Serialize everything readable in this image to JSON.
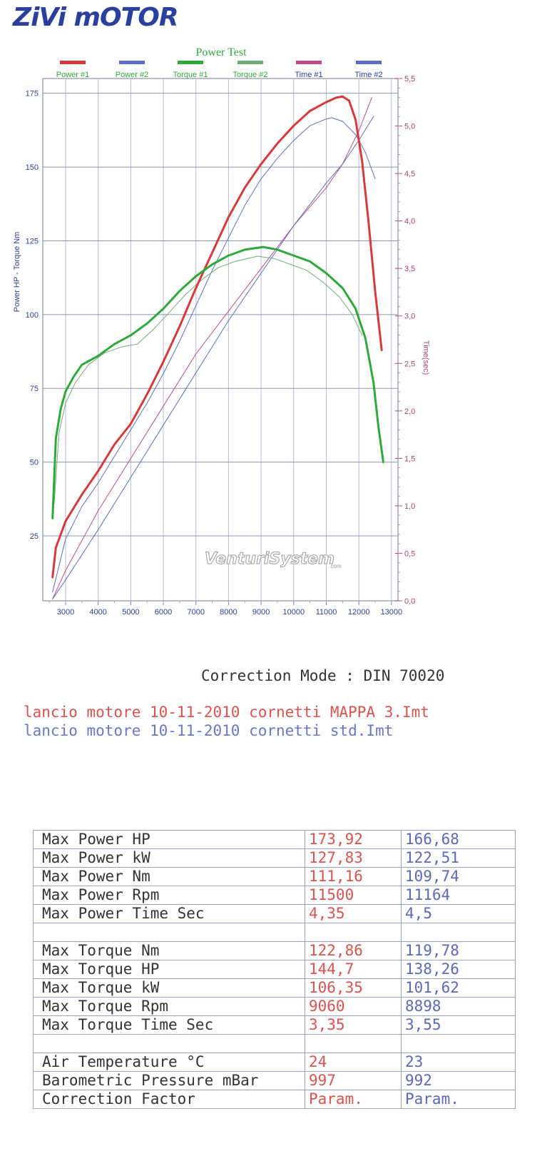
{
  "logo": {
    "text": "ZiVi mOTOR",
    "color": "#2b3f9e"
  },
  "chart_data": {
    "type": "line",
    "title": "Power Test",
    "ylabel": "Power HP - Torque Nm",
    "y2label": "Time(sec)",
    "xlim": [
      2300,
      13200
    ],
    "ylim": [
      3,
      180
    ],
    "y2lim": [
      0,
      5.5
    ],
    "x_ticks": [
      3000,
      4000,
      5000,
      6000,
      7000,
      8000,
      9000,
      10000,
      11000,
      12000,
      13000
    ],
    "y_ticks": [
      25,
      50,
      75,
      100,
      125,
      150,
      175
    ],
    "y2_ticks": [
      "0,0",
      "0,5",
      "1,0",
      "1,5",
      "2,0",
      "2,5",
      "3,0",
      "3,5",
      "4,0",
      "4,5",
      "5,0",
      "5,5"
    ],
    "watermark": "VenturiSystem",
    "watermark_sub": ".com",
    "grid": true,
    "legend_position": "top",
    "series": [
      {
        "name": "Power #1",
        "axis": "left",
        "color": "#d63a3a",
        "width": 3,
        "x": [
          2600,
          2700,
          3000,
          3500,
          4000,
          4500,
          5000,
          5500,
          6000,
          6500,
          7000,
          7500,
          8000,
          8500,
          9000,
          9500,
          10000,
          10500,
          11000,
          11300,
          11500,
          11700,
          11900,
          12100,
          12300,
          12500,
          12700
        ],
        "y": [
          11,
          21,
          30,
          39,
          47,
          56,
          63,
          73,
          84,
          96,
          109,
          121,
          133,
          143,
          151,
          158,
          164,
          169,
          172,
          173.5,
          173.9,
          172.5,
          166,
          152,
          131,
          108,
          88
        ]
      },
      {
        "name": "Power #2",
        "axis": "left",
        "color": "#5a6fc4",
        "width": 1,
        "x": [
          2600,
          3000,
          3500,
          4000,
          4500,
          5000,
          5500,
          6000,
          6500,
          7000,
          7500,
          8000,
          8500,
          9000,
          9500,
          10000,
          10500,
          11000,
          11164,
          11500,
          11900,
          12200,
          12500
        ],
        "y": [
          6,
          24,
          35,
          43,
          52,
          61,
          70,
          80,
          91,
          103,
          115,
          126,
          137,
          146,
          153,
          159,
          164,
          166.3,
          166.7,
          165.5,
          161,
          155,
          146
        ]
      },
      {
        "name": "Torque #1",
        "axis": "left",
        "color": "#2fa83a",
        "width": 3,
        "x": [
          2600,
          2700,
          2850,
          3000,
          3250,
          3500,
          4000,
          4500,
          5000,
          5500,
          6000,
          6500,
          7000,
          7500,
          8000,
          8500,
          9060,
          9500,
          10000,
          10500,
          11000,
          11500,
          11900,
          12200,
          12450,
          12600,
          12750
        ],
        "y": [
          31,
          58,
          68,
          74,
          79,
          83,
          86,
          90,
          93,
          97,
          102,
          108,
          113,
          117,
          120,
          122,
          122.9,
          122,
          120,
          118,
          114,
          109,
          102,
          92,
          77,
          62,
          50
        ]
      },
      {
        "name": "Torque #2",
        "axis": "left",
        "color": "#6fae72",
        "width": 1,
        "x": [
          2650,
          2800,
          3000,
          3300,
          3700,
          4200,
          4700,
          5200,
          5700,
          6200,
          6700,
          7200,
          7700,
          8200,
          8898,
          9400,
          9900,
          10400,
          10900,
          11400,
          11800,
          12100
        ],
        "y": [
          36,
          60,
          70,
          77,
          83,
          87,
          89,
          90,
          95,
          101,
          107,
          112,
          116,
          118,
          119.8,
          119,
          117,
          115,
          111,
          106,
          100,
          93
        ]
      },
      {
        "name": "Time #1",
        "axis": "right",
        "color": "#c04a8a",
        "width": 1,
        "x": [
          2600,
          3000,
          4000,
          5000,
          6000,
          7000,
          8000,
          9000,
          10000,
          11000,
          11500,
          12000,
          12400
        ],
        "y": [
          0.02,
          0.32,
          0.95,
          1.5,
          2.05,
          2.6,
          3.05,
          3.5,
          3.95,
          4.35,
          4.6,
          4.95,
          5.3
        ]
      },
      {
        "name": "Time #2",
        "axis": "right",
        "color": "#5a6fc4",
        "width": 1,
        "x": [
          2600,
          3000,
          4000,
          5000,
          6000,
          7000,
          8000,
          9000,
          10000,
          11000,
          11500,
          12000,
          12450
        ],
        "y": [
          0.02,
          0.22,
          0.75,
          1.3,
          1.85,
          2.4,
          2.95,
          3.45,
          3.95,
          4.4,
          4.6,
          4.85,
          5.1
        ]
      }
    ]
  },
  "correction_mode": "Correction Mode : DIN 70020",
  "runs": [
    {
      "text": "lancio motore 10-11-2010 cornetti  MAPPA 3.Imt",
      "color": "#d9534f"
    },
    {
      "text": "lancio motore 10-11-2010 cornetti std.Imt",
      "color": "#6a78c9"
    }
  ],
  "results": [
    {
      "label": "Max Power HP",
      "v1": "173,92",
      "v2": "166,68"
    },
    {
      "label": "Max Power kW",
      "v1": "127,83",
      "v2": "122,51"
    },
    {
      "label": "Max Power Nm",
      "v1": "111,16",
      "v2": "109,74"
    },
    {
      "label": "Max Power Rpm",
      "v1": "11500",
      "v2": "11164"
    },
    {
      "label": "Max Power Time Sec",
      "v1": "4,35",
      "v2": "4,5"
    },
    {
      "label": "",
      "v1": "",
      "v2": ""
    },
    {
      "label": "Max Torque Nm",
      "v1": "122,86",
      "v2": "119,78"
    },
    {
      "label": "Max Torque HP",
      "v1": "144,7",
      "v2": "138,26"
    },
    {
      "label": "Max Torque kW",
      "v1": "106,35",
      "v2": "101,62"
    },
    {
      "label": "Max Torque Rpm",
      "v1": "9060",
      "v2": "8898"
    },
    {
      "label": "Max Torque Time Sec",
      "v1": "3,35",
      "v2": "3,55"
    },
    {
      "label": "",
      "v1": "",
      "v2": ""
    },
    {
      "label": "Air Temperature °C",
      "v1": "24",
      "v2": "23"
    },
    {
      "label": "Barometric Pressure mBar",
      "v1": "997",
      "v2": "992"
    },
    {
      "label": "Correction Factor",
      "v1": "Param.",
      "v2": "Param."
    }
  ]
}
